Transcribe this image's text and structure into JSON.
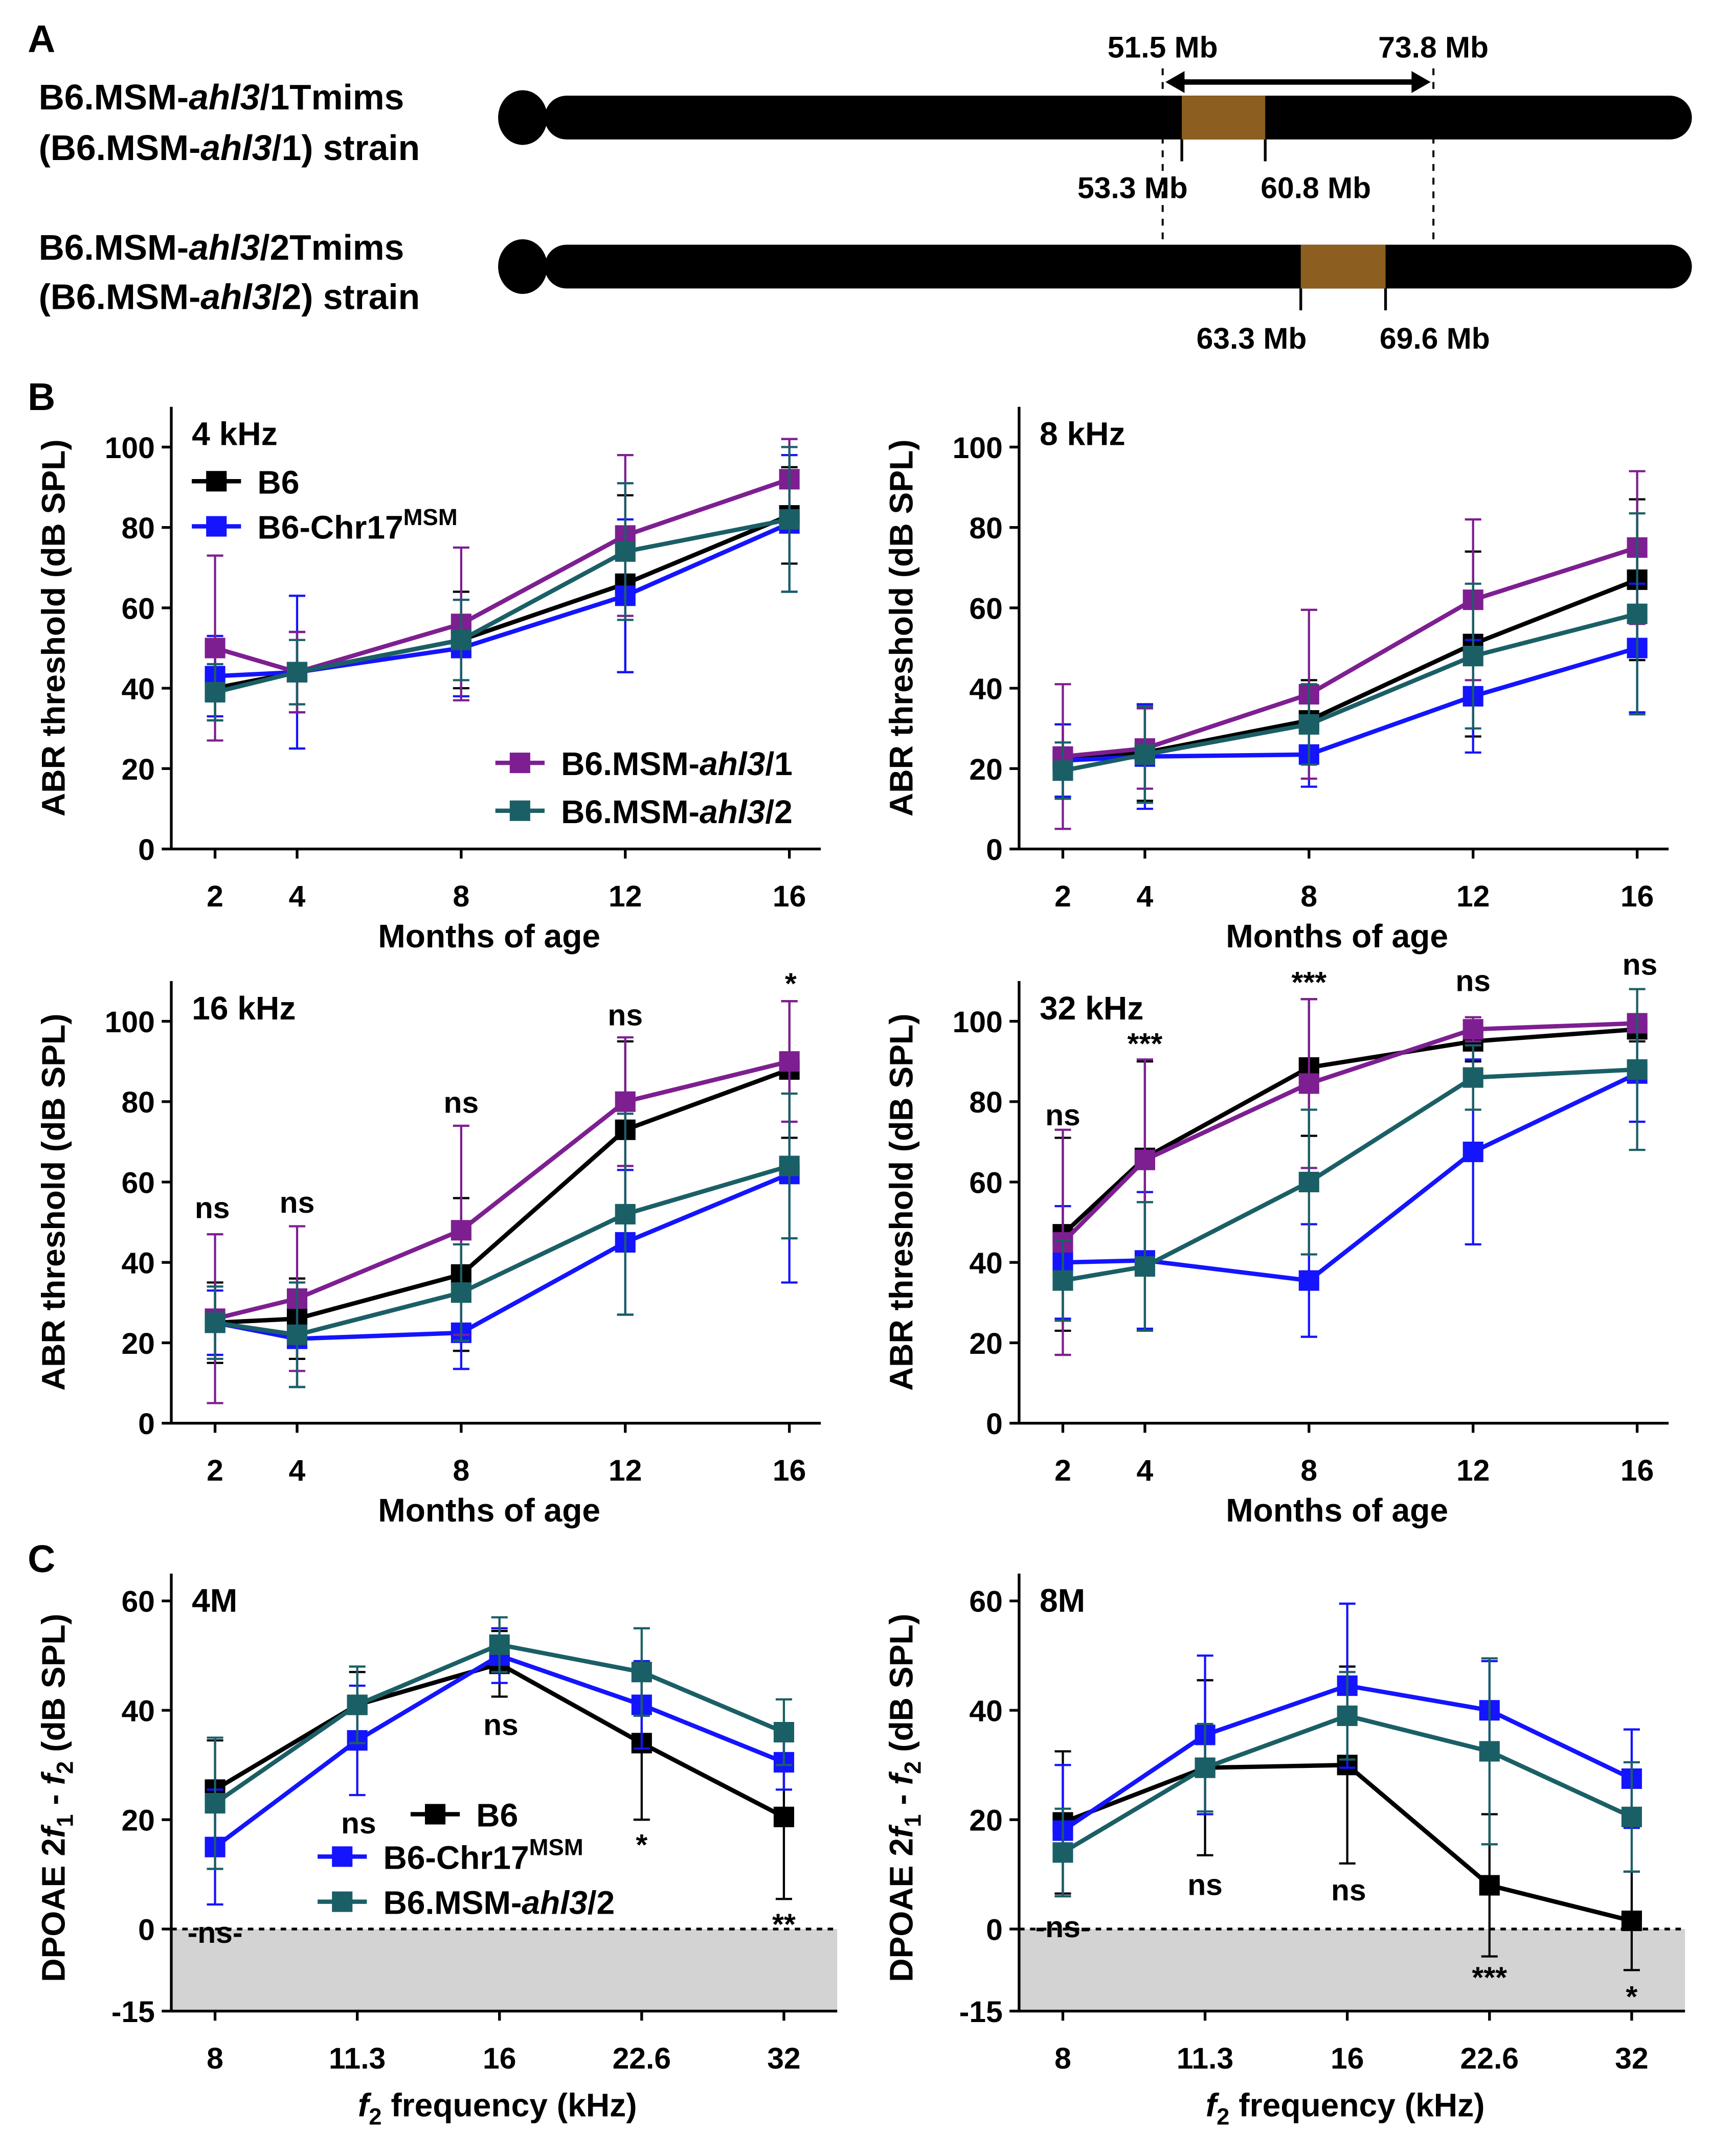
{
  "panel_labels": {
    "a": "A",
    "b": "B",
    "c": "C"
  },
  "panel_a": {
    "strains": [
      {
        "line1": {
          "pre": "B6.MSM-",
          "ital": "ahl3",
          "post": "/1Tmims"
        },
        "line2": {
          "pre": "(B6.MSM-",
          "ital": "ahl3",
          "post": "/1) strain"
        },
        "region_labels": [
          "53.3 Mb",
          "60.8 Mb"
        ]
      },
      {
        "line1": {
          "pre": "B6.MSM-",
          "ital": "ahl3",
          "post": "/2Tmims"
        },
        "line2": {
          "pre": "(B6.MSM-",
          "ital": "ahl3",
          "post": "/2) strain"
        },
        "region_labels": [
          "63.3 Mb",
          "69.6 Mb"
        ]
      }
    ],
    "interval_labels": [
      "51.5 Mb",
      "73.8 Mb"
    ],
    "colors": {
      "chromosome": "#000000",
      "msm_region": "#8c5e1f"
    }
  },
  "colors": {
    "B6": "#000000",
    "B6-Chr17MSM": "#1414ff",
    "B6.MSM-ahl3/1": "#7d1f91",
    "B6.MSM-ahl3/2": "#1b5f66",
    "shade": "#d3d3d3"
  },
  "chart_data": [
    {
      "type": "line",
      "title": "4 kHz",
      "xlabel": "Months of age",
      "ylabel": "ABR threshold (dB SPL)",
      "categories": [
        "2",
        "4",
        "8",
        "12",
        "16"
      ],
      "x": [
        2,
        4,
        8,
        12,
        16
      ],
      "ylim": [
        0,
        110
      ],
      "yticks": [
        "0",
        "20",
        "40",
        "60",
        "80",
        "100"
      ],
      "grid": false,
      "legend": "top-left and bottom-right",
      "series": [
        {
          "key": "B6",
          "name": {
            "pre": "B6",
            "sup": ""
          },
          "color": "#000000",
          "values": [
            40,
            44,
            52,
            66,
            83
          ],
          "error": [
            8,
            10,
            12,
            22,
            12
          ]
        },
        {
          "key": "chr17",
          "name": {
            "pre": "B6-Chr17",
            "sup": "MSM"
          },
          "color": "#1414ff",
          "values": [
            43,
            44,
            50,
            63,
            81
          ],
          "error": [
            10,
            19,
            12,
            19,
            17
          ]
        },
        {
          "key": "ahl3_1",
          "name": {
            "pre": "B6.MSM-",
            "ital": "ahl3",
            "post": "/1"
          },
          "color": "#7d1f91",
          "values": [
            50,
            44,
            56,
            78,
            92
          ],
          "error": [
            23,
            10,
            19,
            20,
            10
          ]
        },
        {
          "key": "ahl3_2",
          "name": {
            "pre": "B6.MSM-",
            "ital": "ahl3",
            "post": "/2"
          },
          "color": "#1b5f66",
          "values": [
            39,
            44,
            52,
            74,
            82
          ],
          "error": [
            7,
            8,
            10,
            17,
            18
          ]
        }
      ],
      "annotations": []
    },
    {
      "type": "line",
      "title": "8 kHz",
      "xlabel": "Months of age",
      "ylabel": "ABR threshold (dB SPL)",
      "categories": [
        "2",
        "4",
        "8",
        "12",
        "16"
      ],
      "x": [
        2,
        4,
        8,
        12,
        16
      ],
      "ylim": [
        0,
        110
      ],
      "yticks": [
        "0",
        "20",
        "40",
        "60",
        "80",
        "100"
      ],
      "grid": false,
      "series": [
        {
          "key": "B6",
          "color": "#000000",
          "values": [
            22,
            24,
            32,
            51,
            67
          ],
          "error": [
            9,
            12,
            10,
            23,
            20
          ]
        },
        {
          "key": "chr17",
          "color": "#1414ff",
          "values": [
            22,
            23,
            23.5,
            38,
            50
          ],
          "error": [
            9,
            13,
            8,
            14,
            16
          ]
        },
        {
          "key": "ahl3_1",
          "color": "#7d1f91",
          "values": [
            23,
            25,
            38.5,
            62,
            75
          ],
          "error": [
            18,
            10,
            21,
            20,
            19
          ]
        },
        {
          "key": "ahl3_2",
          "color": "#1b5f66",
          "values": [
            19.5,
            23.5,
            31,
            48,
            58.5
          ],
          "error": [
            7,
            12,
            10,
            18,
            25
          ]
        }
      ],
      "annotations": []
    },
    {
      "type": "line",
      "title": "16 kHz",
      "xlabel": "Months of age",
      "ylabel": "ABR threshold (dB SPL)",
      "categories": [
        "2",
        "4",
        "8",
        "12",
        "16"
      ],
      "x": [
        2,
        4,
        8,
        12,
        16
      ],
      "ylim": [
        0,
        110
      ],
      "yticks": [
        "0",
        "20",
        "40",
        "60",
        "80",
        "100"
      ],
      "grid": false,
      "series": [
        {
          "key": "B6",
          "color": "#000000",
          "values": [
            25,
            26,
            37,
            73,
            88
          ],
          "error": [
            10,
            10,
            19,
            22,
            17
          ]
        },
        {
          "key": "chr17",
          "color": "#1414ff",
          "values": [
            25,
            21,
            22.5,
            45,
            62
          ],
          "error": [
            8,
            12,
            9,
            18,
            27
          ]
        },
        {
          "key": "ahl3_1",
          "color": "#7d1f91",
          "values": [
            26,
            31,
            48,
            80,
            90
          ],
          "error": [
            21,
            18,
            26,
            16,
            15
          ]
        },
        {
          "key": "ahl3_2",
          "color": "#1b5f66",
          "values": [
            25,
            22,
            32.5,
            52,
            64
          ],
          "error": [
            9,
            13,
            12,
            25,
            18
          ]
        }
      ],
      "annotations": [
        "ns",
        "ns",
        "ns",
        "ns",
        "*"
      ]
    },
    {
      "type": "line",
      "title": "32 kHz",
      "xlabel": "Months of age",
      "ylabel": "ABR threshold (dB SPL)",
      "categories": [
        "2",
        "4",
        "8",
        "12",
        "16"
      ],
      "x": [
        2,
        4,
        8,
        12,
        16
      ],
      "ylim": [
        0,
        110
      ],
      "yticks": [
        "0",
        "20",
        "40",
        "60",
        "80",
        "100"
      ],
      "grid": false,
      "series": [
        {
          "key": "B6",
          "color": "#000000",
          "values": [
            47,
            66,
            88.5,
            95,
            98
          ],
          "error": [
            24,
            24,
            17,
            5,
            3
          ]
        },
        {
          "key": "chr17",
          "color": "#1414ff",
          "values": [
            40,
            40.5,
            35.5,
            67.5,
            87
          ],
          "error": [
            14,
            17,
            14,
            23,
            12
          ]
        },
        {
          "key": "ahl3_1",
          "color": "#7d1f91",
          "values": [
            45,
            65.5,
            84.5,
            98,
            99.5
          ],
          "error": [
            28,
            25,
            21,
            3,
            2
          ]
        },
        {
          "key": "ahl3_2",
          "color": "#1b5f66",
          "values": [
            35.5,
            39,
            60,
            86,
            88
          ],
          "error": [
            10,
            16,
            18,
            8,
            20
          ]
        }
      ],
      "annotations": [
        "ns",
        "***",
        "***",
        "ns",
        "ns"
      ]
    },
    {
      "type": "line",
      "title": "4M",
      "xlabel": {
        "ital": "f",
        "sub": "2",
        "post": " frequency (kHz)"
      },
      "ylabel": {
        "a": "DPOAE 2",
        "f1": "f",
        "s1": "1",
        "mid": " - ",
        "f2": "f",
        "s2": "2",
        "post": " (dB SPL)"
      },
      "categories": [
        "8",
        "11.3",
        "16",
        "22.6",
        "32"
      ],
      "ylim": [
        -15,
        65
      ],
      "yticks": [
        "-15",
        "0",
        "20",
        "40",
        "60"
      ],
      "grid": false,
      "reference_line": 0,
      "shaded_below": 0,
      "legend": "center",
      "series": [
        {
          "key": "B6",
          "name": {
            "pre": "B6",
            "sup": ""
          },
          "color": "#000000",
          "values": [
            25.5,
            41,
            48.5,
            34,
            20.5
          ],
          "error": [
            9,
            6,
            6,
            14,
            15
          ]
        },
        {
          "key": "chr17",
          "name": {
            "pre": "B6-Chr17",
            "sup": "MSM"
          },
          "color": "#1414ff",
          "values": [
            15,
            34.5,
            50,
            41,
            30.5
          ],
          "error": [
            10.5,
            10,
            5,
            8,
            5
          ]
        },
        {
          "key": "ahl3_2",
          "name": {
            "pre": "B6.MSM-",
            "ital": "ahl3",
            "post": "/2"
          },
          "color": "#1b5f66",
          "values": [
            23,
            41,
            52,
            47,
            36
          ],
          "error": [
            12,
            7,
            5,
            8,
            6
          ]
        }
      ],
      "annotations": [
        "-ns-",
        "ns",
        "ns",
        "*",
        "**"
      ]
    },
    {
      "type": "line",
      "title": "8M",
      "xlabel": {
        "ital": "f",
        "sub": "2",
        "post": " frequency (kHz)"
      },
      "ylabel": {
        "a": "DPOAE 2",
        "f1": "f",
        "s1": "1",
        "mid": " - ",
        "f2": "f",
        "s2": "2",
        "post": " (dB SPL)"
      },
      "categories": [
        "8",
        "11.3",
        "16",
        "22.6",
        "32"
      ],
      "ylim": [
        -15,
        65
      ],
      "yticks": [
        "-15",
        "0",
        "20",
        "40",
        "60"
      ],
      "grid": false,
      "reference_line": 0,
      "shaded_below": 0,
      "series": [
        {
          "key": "B6",
          "color": "#000000",
          "values": [
            19.5,
            29.5,
            30,
            8,
            1.5
          ],
          "error": [
            13,
            16,
            18,
            13,
            9
          ]
        },
        {
          "key": "chr17",
          "color": "#1414ff",
          "values": [
            18,
            35.5,
            44.5,
            40,
            27.5
          ],
          "error": [
            12,
            14.5,
            15,
            9,
            9
          ]
        },
        {
          "key": "ahl3_2",
          "color": "#1b5f66",
          "values": [
            14,
            29.5,
            39,
            32.5,
            20.5
          ],
          "error": [
            8,
            8,
            8,
            17,
            10
          ]
        }
      ],
      "annotations": [
        "-ns-",
        "ns",
        "ns",
        "***",
        "*"
      ]
    }
  ]
}
